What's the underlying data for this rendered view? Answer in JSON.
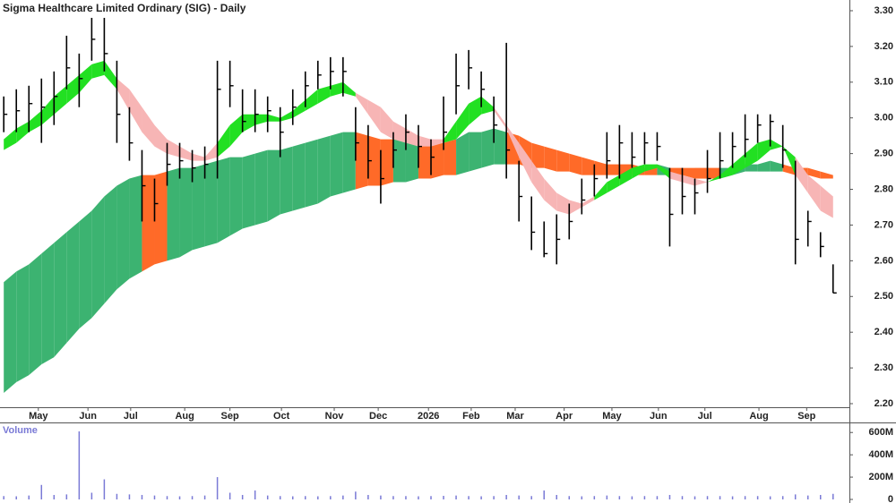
{
  "chart_data": [
    {
      "type": "ohlc",
      "title": "Sigma Healthcare Limited Ordinary (SIG) - Daily",
      "color": "#000000",
      "x": [
        0,
        1,
        2,
        3,
        4,
        5,
        6,
        7,
        8,
        9,
        10,
        11,
        12,
        13,
        14,
        15,
        16,
        17,
        18,
        19,
        20,
        21,
        22,
        23,
        24,
        25,
        26,
        27,
        28,
        29,
        30,
        31,
        32,
        33,
        34,
        35,
        36,
        37,
        38,
        39,
        40,
        41,
        42,
        43,
        44,
        45,
        46,
        47,
        48,
        49,
        50,
        51,
        52,
        53,
        54,
        55,
        56,
        57,
        58,
        59,
        60,
        61,
        62,
        63,
        64,
        65,
        66
      ],
      "high": [
        3.06,
        3.08,
        3.09,
        3.11,
        3.13,
        3.23,
        3.18,
        3.28,
        3.28,
        3.16,
        3.03,
        2.91,
        2.83,
        2.93,
        2.93,
        2.91,
        2.92,
        3.16,
        3.16,
        3.08,
        3.08,
        3.06,
        3.03,
        3.08,
        3.13,
        3.16,
        3.17,
        3.17,
        3.03,
        2.98,
        2.91,
        2.96,
        3.01,
        2.98,
        2.94,
        3.06,
        3.18,
        3.19,
        3.13,
        3.06,
        3.21,
        2.88,
        2.78,
        2.71,
        2.73,
        2.76,
        2.83,
        2.87,
        2.96,
        2.98,
        2.96,
        2.96,
        2.96,
        2.86,
        2.86,
        2.83,
        2.91,
        2.96,
        2.96,
        3.01,
        3.01,
        3.01,
        2.98,
        2.88,
        2.74,
        2.68,
        2.59
      ],
      "low": [
        2.96,
        2.96,
        2.96,
        2.93,
        2.98,
        3.08,
        3.03,
        3.16,
        3.13,
        2.93,
        2.88,
        2.71,
        2.71,
        2.81,
        2.83,
        2.82,
        2.83,
        2.83,
        3.03,
        2.96,
        2.96,
        2.96,
        2.89,
        2.98,
        3.03,
        3.08,
        3.08,
        3.06,
        2.88,
        2.83,
        2.76,
        2.86,
        2.91,
        2.86,
        2.84,
        2.91,
        3.01,
        3.08,
        3.03,
        2.93,
        2.83,
        2.71,
        2.63,
        2.61,
        2.59,
        2.66,
        2.73,
        2.78,
        2.83,
        2.83,
        2.86,
        2.87,
        2.88,
        2.64,
        2.73,
        2.73,
        2.79,
        2.83,
        2.86,
        2.89,
        2.93,
        2.92,
        2.86,
        2.59,
        2.64,
        2.61,
        2.51
      ],
      "close": [
        3.01,
        3.02,
        3.04,
        3.03,
        3.06,
        3.14,
        3.11,
        3.22,
        3.18,
        3.01,
        2.93,
        2.81,
        2.76,
        2.87,
        2.88,
        2.86,
        2.87,
        3.08,
        3.09,
        2.99,
        3.01,
        3.02,
        2.96,
        3.03,
        3.09,
        3.12,
        3.13,
        3.13,
        2.93,
        2.88,
        2.83,
        2.91,
        2.96,
        2.92,
        2.89,
        2.96,
        3.09,
        3.14,
        3.08,
        2.98,
        2.91,
        2.78,
        2.68,
        2.62,
        2.66,
        2.71,
        2.77,
        2.83,
        2.88,
        2.93,
        2.89,
        2.93,
        2.92,
        2.73,
        2.78,
        2.79,
        2.83,
        2.88,
        2.92,
        2.94,
        2.98,
        2.99,
        2.91,
        2.66,
        2.71,
        2.64,
        2.51
      ],
      "ribbons": [
        {
          "up_color": "#3cb371",
          "down_color": "#ff6a28",
          "fast": [
            2.54,
            2.57,
            2.59,
            2.62,
            2.65,
            2.68,
            2.71,
            2.74,
            2.78,
            2.81,
            2.83,
            2.57,
            2.59,
            2.85,
            2.86,
            2.86,
            2.87,
            2.88,
            2.89,
            2.89,
            2.9,
            2.91,
            2.91,
            2.92,
            2.93,
            2.94,
            2.95,
            2.96,
            2.8,
            2.81,
            2.81,
            2.94,
            2.94,
            2.83,
            2.83,
            2.84,
            2.94,
            2.96,
            2.96,
            2.97,
            2.87,
            2.87,
            2.86,
            2.86,
            2.85,
            2.85,
            2.84,
            2.84,
            2.84,
            2.84,
            2.84,
            2.84,
            2.87,
            2.84,
            2.84,
            2.83,
            2.83,
            2.86,
            2.86,
            2.87,
            2.87,
            2.88,
            2.85,
            2.84,
            2.84,
            2.83,
            2.83
          ],
          "slow": [
            2.23,
            2.26,
            2.28,
            2.31,
            2.33,
            2.37,
            2.41,
            2.44,
            2.48,
            2.52,
            2.55,
            2.84,
            2.84,
            2.6,
            2.61,
            2.63,
            2.64,
            2.65,
            2.67,
            2.69,
            2.7,
            2.71,
            2.73,
            2.74,
            2.75,
            2.76,
            2.78,
            2.79,
            2.96,
            2.95,
            2.94,
            2.82,
            2.82,
            2.93,
            2.93,
            2.93,
            2.84,
            2.85,
            2.86,
            2.87,
            2.96,
            2.95,
            2.93,
            2.92,
            2.91,
            2.9,
            2.89,
            2.88,
            2.87,
            2.87,
            2.87,
            2.86,
            2.84,
            2.86,
            2.86,
            2.86,
            2.86,
            2.83,
            2.84,
            2.85,
            2.85,
            2.85,
            2.87,
            2.86,
            2.86,
            2.85,
            2.84
          ]
        },
        {
          "up_color": "#22e022",
          "down_color": "#f7b5b5",
          "fast": [
            2.94,
            2.97,
            2.99,
            3.02,
            3.06,
            3.09,
            3.12,
            3.15,
            3.16,
            3.08,
            3.02,
            2.96,
            2.92,
            2.9,
            2.89,
            2.88,
            2.88,
            2.93,
            2.98,
            3.01,
            3.01,
            3.01,
            3.0,
            3.02,
            3.05,
            3.08,
            3.09,
            3.1,
            3.06,
            3.01,
            2.96,
            2.94,
            2.93,
            2.92,
            2.92,
            2.94,
            2.99,
            3.04,
            3.06,
            3.02,
            2.97,
            2.89,
            2.82,
            2.77,
            2.74,
            2.73,
            2.75,
            2.78,
            2.82,
            2.84,
            2.86,
            2.87,
            2.87,
            2.83,
            2.82,
            2.81,
            2.82,
            2.84,
            2.87,
            2.9,
            2.93,
            2.94,
            2.92,
            2.84,
            2.79,
            2.74,
            2.72
          ],
          "slow": [
            2.91,
            2.93,
            2.96,
            2.98,
            3.01,
            3.04,
            3.07,
            3.11,
            3.12,
            3.11,
            3.08,
            3.03,
            2.98,
            2.94,
            2.92,
            2.9,
            2.89,
            2.89,
            2.92,
            2.96,
            2.98,
            2.99,
            2.99,
            3.0,
            3.02,
            3.04,
            3.06,
            3.07,
            3.07,
            3.05,
            3.03,
            2.99,
            2.97,
            2.95,
            2.94,
            2.93,
            2.94,
            2.98,
            3.01,
            3.03,
            2.98,
            2.93,
            2.88,
            2.83,
            2.79,
            2.77,
            2.76,
            2.77,
            2.79,
            2.81,
            2.83,
            2.85,
            2.86,
            2.85,
            2.84,
            2.83,
            2.82,
            2.83,
            2.84,
            2.86,
            2.88,
            2.91,
            2.92,
            2.89,
            2.84,
            2.81,
            2.78
          ]
        }
      ],
      "xlim": [
        -0.3,
        67.3
      ],
      "xticks": [
        {
          "value": 2.75,
          "label": "May"
        },
        {
          "value": 6.7,
          "label": "Jun"
        },
        {
          "value": 10.1,
          "label": "Jul"
        },
        {
          "value": 14.4,
          "label": "Aug"
        },
        {
          "value": 18.0,
          "label": "Sep"
        },
        {
          "value": 22.1,
          "label": "Oct"
        },
        {
          "value": 26.3,
          "label": "Nov"
        },
        {
          "value": 29.8,
          "label": "Dec"
        },
        {
          "value": 33.8,
          "label": "2026"
        },
        {
          "value": 37.2,
          "label": "Feb"
        },
        {
          "value": 40.7,
          "label": "Mar"
        },
        {
          "value": 44.6,
          "label": "Apr"
        },
        {
          "value": 48.4,
          "label": "May"
        },
        {
          "value": 52.1,
          "label": "Jun"
        },
        {
          "value": 55.8,
          "label": "Jul"
        },
        {
          "value": 60.1,
          "label": "Aug"
        },
        {
          "value": 63.9,
          "label": "Sep"
        }
      ],
      "ylim": [
        2.19,
        3.33
      ],
      "yticks": [
        {
          "value": 2.2,
          "label": "2.20"
        },
        {
          "value": 2.3,
          "label": "2.30"
        },
        {
          "value": 2.4,
          "label": "2.40"
        },
        {
          "value": 2.5,
          "label": "2.50"
        },
        {
          "value": 2.6,
          "label": "2.60"
        },
        {
          "value": 2.7,
          "label": "2.70"
        },
        {
          "value": 2.8,
          "label": "2.80"
        },
        {
          "value": 2.9,
          "label": "2.90"
        },
        {
          "value": 3.0,
          "label": "3.00"
        },
        {
          "value": 3.1,
          "label": "3.10"
        },
        {
          "value": 3.2,
          "label": "3.20"
        },
        {
          "value": 3.3,
          "label": "3.30"
        }
      ]
    },
    {
      "type": "bar",
      "title": "Volume",
      "color": "#7a7ad6",
      "x": [
        0,
        1,
        2,
        3,
        4,
        5,
        6,
        7,
        8,
        9,
        10,
        11,
        12,
        13,
        14,
        15,
        16,
        17,
        18,
        19,
        20,
        21,
        22,
        23,
        24,
        25,
        26,
        27,
        28,
        29,
        30,
        31,
        32,
        33,
        34,
        35,
        36,
        37,
        38,
        39,
        40,
        41,
        42,
        43,
        44,
        45,
        46,
        47,
        48,
        49,
        50,
        51,
        52,
        53,
        54,
        55,
        56,
        57,
        58,
        59,
        60,
        61,
        62,
        63,
        64,
        65,
        66
      ],
      "values": [
        30000000,
        28000000,
        35000000,
        130000000,
        40000000,
        45000000,
        610000000,
        60000000,
        180000000,
        50000000,
        45000000,
        40000000,
        35000000,
        30000000,
        28000000,
        30000000,
        35000000,
        200000000,
        60000000,
        40000000,
        80000000,
        35000000,
        30000000,
        28000000,
        30000000,
        28000000,
        30000000,
        35000000,
        70000000,
        40000000,
        35000000,
        30000000,
        30000000,
        28000000,
        30000000,
        32000000,
        35000000,
        30000000,
        28000000,
        30000000,
        40000000,
        35000000,
        30000000,
        80000000,
        40000000,
        30000000,
        28000000,
        30000000,
        35000000,
        30000000,
        28000000,
        30000000,
        30000000,
        40000000,
        30000000,
        28000000,
        30000000,
        30000000,
        28000000,
        30000000,
        30000000,
        28000000,
        30000000,
        45000000,
        35000000,
        40000000,
        50000000
      ],
      "xlim": [
        -0.3,
        67.3
      ],
      "ylim": [
        0,
        690000000
      ],
      "yticks": [
        0,
        {
          "value": 200000000,
          "label": "200M"
        },
        {
          "value": 400000000,
          "label": "400M"
        },
        {
          "value": 600000000,
          "label": "600M"
        }
      ]
    }
  ]
}
